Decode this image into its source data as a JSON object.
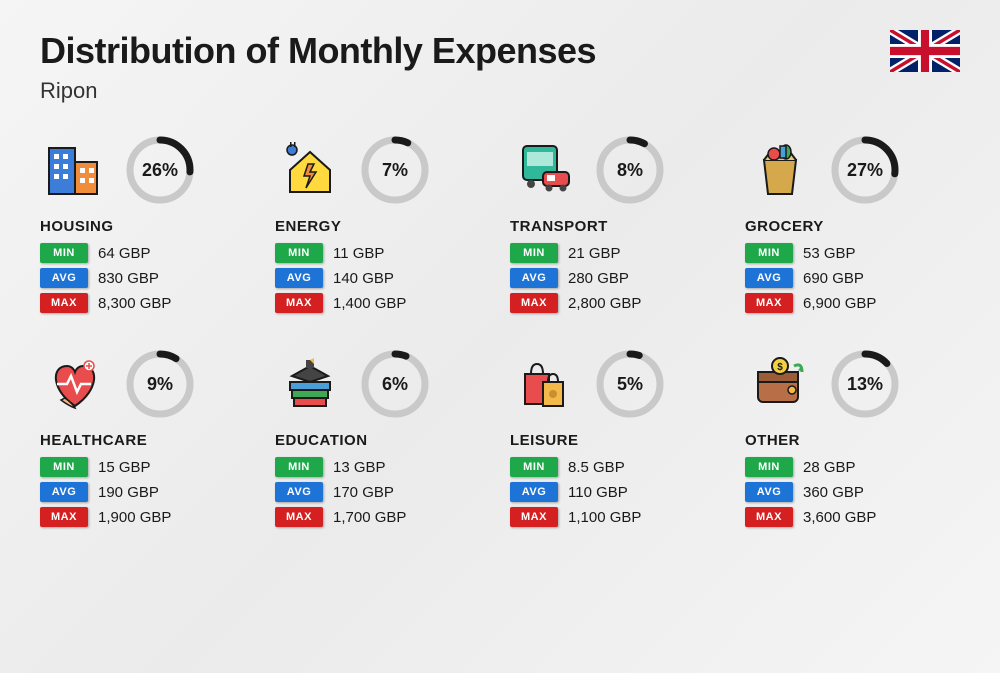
{
  "title": "Distribution of Monthly Expenses",
  "location": "Ripon",
  "flag": "uk",
  "currency": "GBP",
  "styling": {
    "background": "#f2f2f2",
    "text_color": "#1a1a1a",
    "title_fontsize": 36,
    "ring_track_color": "#c9c9c9",
    "ring_progress_color": "#1a1a1a",
    "ring_stroke_width": 7,
    "badge_colors": {
      "min": "#1fa84a",
      "avg": "#1e73d6",
      "max": "#d42020"
    }
  },
  "badges": {
    "min_label": "MIN",
    "avg_label": "AVG",
    "max_label": "MAX"
  },
  "categories": [
    {
      "name": "HOUSING",
      "percent": 26,
      "min": "64 GBP",
      "avg": "830 GBP",
      "max": "8,300 GBP",
      "icon": "housing"
    },
    {
      "name": "ENERGY",
      "percent": 7,
      "min": "11 GBP",
      "avg": "140 GBP",
      "max": "1,400 GBP",
      "icon": "energy"
    },
    {
      "name": "TRANSPORT",
      "percent": 8,
      "min": "21 GBP",
      "avg": "280 GBP",
      "max": "2,800 GBP",
      "icon": "transport"
    },
    {
      "name": "GROCERY",
      "percent": 27,
      "min": "53 GBP",
      "avg": "690 GBP",
      "max": "6,900 GBP",
      "icon": "grocery"
    },
    {
      "name": "HEALTHCARE",
      "percent": 9,
      "min": "15 GBP",
      "avg": "190 GBP",
      "max": "1,900 GBP",
      "icon": "healthcare"
    },
    {
      "name": "EDUCATION",
      "percent": 6,
      "min": "13 GBP",
      "avg": "170 GBP",
      "max": "1,700 GBP",
      "icon": "education"
    },
    {
      "name": "LEISURE",
      "percent": 5,
      "min": "8.5 GBP",
      "avg": "110 GBP",
      "max": "1,100 GBP",
      "icon": "leisure"
    },
    {
      "name": "OTHER",
      "percent": 13,
      "min": "28 GBP",
      "avg": "360 GBP",
      "max": "3,600 GBP",
      "icon": "other"
    }
  ]
}
